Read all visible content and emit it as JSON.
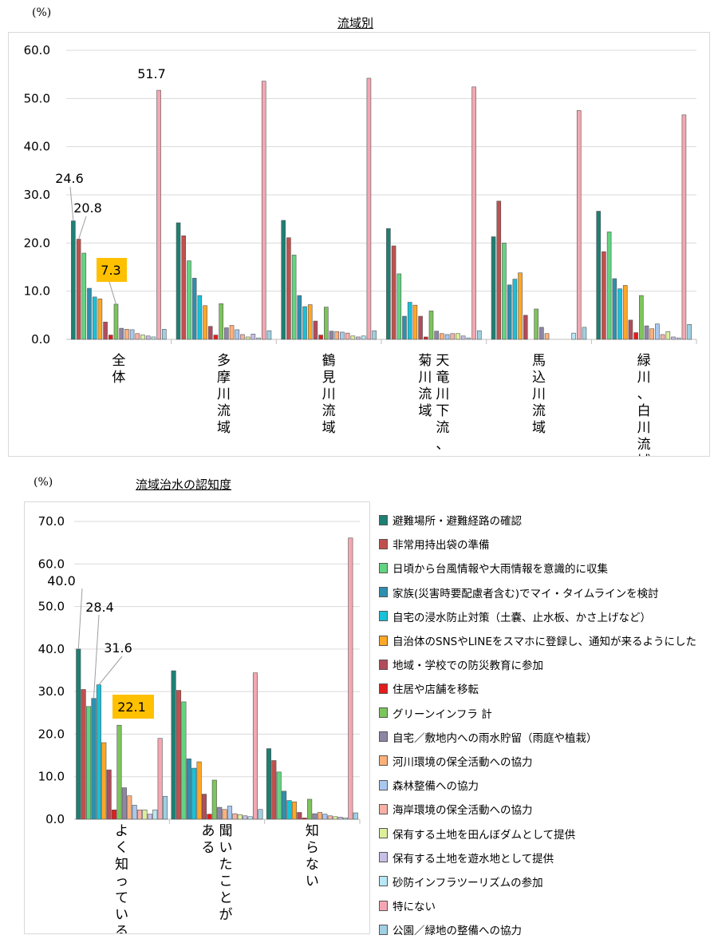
{
  "top": {
    "title": "流域別",
    "unit": "(%)",
    "callouts": {
      "v1": "51.7",
      "v2": "24.6",
      "v3": "20.8",
      "v4": "7.3"
    }
  },
  "bottom": {
    "title": "流域治水の認知度",
    "unit": "(%)",
    "callouts": {
      "v1": "40.0",
      "v2": "28.4",
      "v3": "31.6",
      "v4": "22.1"
    }
  },
  "colors": {
    "highlight": "#ffc000",
    "panel_border": "#d9d9d9",
    "gridline": "#d9d9d9"
  },
  "chart_data": [
    {
      "type": "bar",
      "title": "流域別",
      "ylabel": "(%)",
      "ylim": [
        0,
        60
      ],
      "yticks": [
        "0.0",
        "10.0",
        "20.0",
        "30.0",
        "40.0",
        "50.0",
        "60.0"
      ],
      "categories": [
        "全体",
        "多摩川流域",
        "鶴見川流域",
        "天竜川下流、菊川流域",
        "馬込川流域",
        "緑川、白川流域"
      ],
      "category_label_columns": [
        [
          "全体"
        ],
        [
          "多摩川流域"
        ],
        [
          "鶴見川流域"
        ],
        [
          "天竜川下流、",
          "菊川流域"
        ],
        [
          "馬込川流域"
        ],
        [
          "緑川、白川流域"
        ]
      ],
      "values": [
        [
          24.6,
          20.8,
          17.9,
          10.6,
          8.8,
          8.4,
          3.6,
          0.9,
          7.3,
          2.3,
          2.1,
          2.0,
          1.2,
          0.9,
          0.7,
          0.5,
          51.7,
          2.1
        ],
        [
          24.2,
          21.5,
          16.3,
          12.7,
          9.1,
          7.0,
          2.7,
          0.9,
          7.4,
          2.4,
          2.9,
          2.0,
          1.0,
          0.5,
          1.1,
          0.3,
          53.6,
          1.8
        ],
        [
          24.7,
          21.1,
          17.5,
          9.1,
          6.8,
          7.2,
          3.8,
          0.9,
          6.7,
          1.7,
          1.6,
          1.5,
          1.3,
          0.7,
          0.5,
          0.7,
          54.2,
          1.8
        ],
        [
          23.0,
          19.4,
          13.6,
          4.8,
          7.7,
          7.1,
          4.8,
          0.5,
          5.9,
          1.7,
          1.2,
          1.0,
          1.2,
          1.2,
          0.7,
          0.3,
          52.4,
          1.8
        ],
        [
          21.3,
          28.7,
          20.0,
          11.3,
          12.5,
          13.8,
          5.0,
          0.0,
          6.3,
          2.5,
          1.2,
          0.0,
          0.0,
          0.0,
          0.0,
          1.3,
          47.5,
          2.5
        ],
        [
          26.6,
          18.2,
          22.3,
          12.6,
          10.5,
          11.2,
          4.0,
          1.4,
          9.1,
          2.8,
          2.2,
          3.2,
          1.0,
          1.6,
          0.5,
          0.3,
          46.6,
          3.1
        ]
      ]
    },
    {
      "type": "bar",
      "title": "流域治水の認知度",
      "ylabel": "(%)",
      "ylim": [
        0,
        70
      ],
      "yticks": [
        "0.0",
        "10.0",
        "20.0",
        "30.0",
        "40.0",
        "50.0",
        "60.0",
        "70.0"
      ],
      "categories": [
        "よく知っている",
        "聞いたことがある",
        "知らない"
      ],
      "category_label_columns": [
        [
          "よく知っている"
        ],
        [
          "聞いたことが",
          "ある"
        ],
        [
          "知らない"
        ]
      ],
      "values": [
        [
          40.0,
          30.5,
          26.5,
          28.4,
          31.6,
          18.0,
          11.6,
          2.2,
          22.1,
          7.4,
          5.5,
          3.3,
          2.2,
          2.2,
          1.2,
          2.2,
          19.0,
          5.4
        ],
        [
          34.9,
          30.3,
          27.6,
          14.2,
          12.0,
          13.5,
          5.9,
          1.2,
          9.2,
          2.8,
          2.3,
          3.1,
          1.3,
          1.1,
          0.8,
          0.6,
          34.4,
          2.3
        ],
        [
          16.6,
          13.8,
          11.1,
          6.6,
          4.4,
          4.1,
          1.6,
          0.3,
          4.7,
          1.3,
          1.6,
          1.2,
          0.8,
          0.6,
          0.5,
          0.3,
          66.1,
          1.5
        ]
      ]
    }
  ],
  "series": [
    {
      "name": "避難場所・避難経路の確認",
      "color": "#1e7f74"
    },
    {
      "name": "非常用持出袋の準備",
      "color": "#c0504d"
    },
    {
      "name": "日頃から台風情報や大雨情報を意識的に収集",
      "color": "#62d47f"
    },
    {
      "name": "家族(災害時要配慮者含む)でマイ・タイムラインを検討",
      "color": "#2e8fae"
    },
    {
      "name": "自宅の浸水防止対策（土嚢、止水板、かさ上げなど）",
      "color": "#18c1d8"
    },
    {
      "name": "自治体のSNSやLINEをスマホに登録し、通知が来るようにした",
      "color": "#ffa726"
    },
    {
      "name": "地域・学校での防災教育に参加",
      "color": "#b14c5a"
    },
    {
      "name": "住居や店舗を移転",
      "color": "#e21d1d"
    },
    {
      "name": "グリーンインフラ 計",
      "color": "#7cc45c"
    },
    {
      "name": "自宅／敷地内への雨水貯留（雨庭や植栽）",
      "color": "#8f86a6"
    },
    {
      "name": "河川環境の保全活動への協力",
      "color": "#ffb07a"
    },
    {
      "name": "森林整備への協力",
      "color": "#a9c8ef"
    },
    {
      "name": "海岸環境の保全活動への協力",
      "color": "#f7b1a6"
    },
    {
      "name": "保有する土地を田んぼダムとして提供",
      "color": "#dcef9c"
    },
    {
      "name": "保有する土地を遊水地として提供",
      "color": "#c9bfe6"
    },
    {
      "name": "砂防インフラツーリズムの参加",
      "color": "#b8e7f5"
    },
    {
      "name": "特にない",
      "color": "#f4a7b2"
    },
    {
      "name": "公園／緑地の整備への協力",
      "color": "#9fd0e3"
    }
  ]
}
